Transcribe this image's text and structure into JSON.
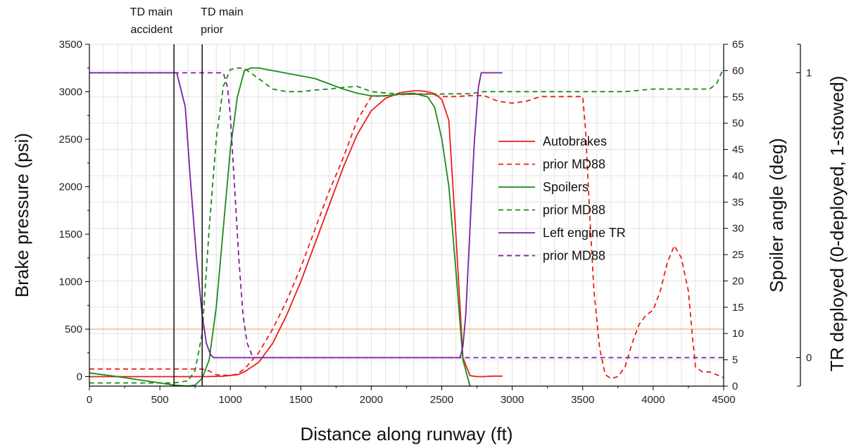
{
  "chart_data": {
    "type": "line",
    "xlabel": "Distance along runway (ft)",
    "ylabel_left": "Brake pressure (psi)",
    "ylabel_right": "Spoiler angle (deg)",
    "ylabel_far_right": "TR deployed (0-deployed, 1-stowed)",
    "xlim": [
      0,
      4500
    ],
    "ylim_left": [
      -100,
      3500
    ],
    "ylim_right": [
      0,
      65
    ],
    "ylim_far_right": [
      1.1,
      -0.1
    ],
    "x_ticks": [
      0,
      500,
      1000,
      1500,
      2000,
      2500,
      3000,
      3500,
      4000,
      4500
    ],
    "x_tick_labels": [
      "0",
      "500",
      "1000",
      "1500",
      "2000",
      "2500",
      "3000",
      "3500",
      "4000",
      "4500"
    ],
    "y_left_ticks": [
      0,
      500,
      1000,
      1500,
      2000,
      2500,
      3000,
      3500
    ],
    "y_left_tick_labels": [
      "0",
      "500",
      "1000",
      "1500",
      "2000",
      "2500",
      "3000",
      "3500"
    ],
    "y_right_ticks": [
      0,
      5,
      10,
      15,
      20,
      25,
      30,
      35,
      40,
      45,
      50,
      55,
      60,
      65
    ],
    "y_right_tick_labels": [
      "0",
      "5",
      "10",
      "15",
      "20",
      "25",
      "30",
      "35",
      "40",
      "45",
      "50",
      "55",
      "60",
      "65"
    ],
    "y_far_right_ticks": [
      0,
      1
    ],
    "y_far_right_tick_labels": [
      "0",
      "1"
    ],
    "grid": true,
    "legend_position": "center-right",
    "annotations": [
      {
        "text_lines": [
          "TD main",
          "accident"
        ],
        "x": 600
      },
      {
        "text_lines": [
          "TD main",
          "prior"
        ],
        "x": 800
      }
    ],
    "reference_line": {
      "axis": "left",
      "y": 500,
      "color": "#e8b36a"
    },
    "series": [
      {
        "name": "Autobrakes",
        "axis": "left",
        "color": "#ee1c1c",
        "dash": "solid",
        "x": [
          0,
          700,
          850,
          950,
          1050,
          1100,
          1200,
          1300,
          1400,
          1500,
          1600,
          1700,
          1800,
          1900,
          2000,
          2100,
          2200,
          2300,
          2350,
          2400,
          2450,
          2500,
          2550,
          2600,
          2650,
          2700,
          2750,
          2800,
          2850,
          2930
        ],
        "y": [
          0,
          0,
          0,
          5,
          20,
          50,
          150,
          350,
          650,
          1000,
          1400,
          1800,
          2200,
          2550,
          2800,
          2930,
          2990,
          3010,
          3010,
          3000,
          2980,
          2920,
          2700,
          1500,
          200,
          10,
          0,
          0,
          5,
          5
        ]
      },
      {
        "name": "prior MD88",
        "axis": "left",
        "color": "#ee1c1c",
        "dash": "dashed",
        "x": [
          0,
          800,
          850,
          900,
          1000,
          1050,
          1100,
          1200,
          1300,
          1400,
          1500,
          1600,
          1700,
          1800,
          1900,
          2000,
          2200,
          2400,
          2500,
          2600,
          2700,
          2800,
          2900,
          3000,
          3100,
          3200,
          3300,
          3400,
          3500,
          3520,
          3550,
          3580,
          3620,
          3660,
          3700,
          3750,
          3800,
          3850,
          3900,
          3950,
          4000,
          4050,
          4100,
          4150,
          4200,
          4250,
          4280,
          4300,
          4350,
          4400,
          4450,
          4500
        ],
        "y": [
          80,
          80,
          60,
          20,
          10,
          30,
          80,
          250,
          500,
          800,
          1150,
          1550,
          1950,
          2300,
          2700,
          2950,
          2970,
          2980,
          2950,
          2950,
          2960,
          2960,
          2900,
          2880,
          2900,
          2950,
          2950,
          2950,
          2950,
          2600,
          1700,
          900,
          300,
          20,
          -20,
          0,
          100,
          350,
          550,
          650,
          700,
          900,
          1200,
          1380,
          1250,
          900,
          400,
          100,
          50,
          50,
          20,
          -10
        ]
      },
      {
        "name": "Spoilers",
        "axis": "right",
        "color": "#1b8a1b",
        "dash": "solid",
        "x": [
          0,
          200,
          400,
          600,
          700,
          750,
          800,
          850,
          900,
          950,
          1000,
          1050,
          1100,
          1150,
          1200,
          1300,
          1400,
          1500,
          1600,
          1700,
          1800,
          1900,
          2000,
          2100,
          2200,
          2300,
          2400,
          2450,
          2500,
          2550,
          2600,
          2650,
          2700
        ],
        "y": [
          2.5,
          1.8,
          1.0,
          0.2,
          0,
          0.2,
          1.5,
          5,
          15,
          30,
          45,
          55,
          60,
          60.5,
          60.5,
          60,
          59.5,
          59,
          58.5,
          57.5,
          56.5,
          55.7,
          55.2,
          55.2,
          55.5,
          55.7,
          55.0,
          53.0,
          47,
          38,
          22,
          5,
          0
        ]
      },
      {
        "name": "prior MD88",
        "axis": "right",
        "color": "#1b8a1b",
        "dash": "dashed",
        "x": [
          0,
          600,
          700,
          750,
          800,
          850,
          900,
          950,
          1000,
          1050,
          1100,
          1200,
          1300,
          1400,
          1500,
          1600,
          1700,
          1800,
          1900,
          2000,
          2200,
          2400,
          2600,
          2700,
          2800,
          2900,
          3000,
          3200,
          3400,
          3600,
          3800,
          4000,
          4200,
          4400,
          4450,
          4500
        ],
        "y": [
          0.6,
          0.6,
          1.0,
          3,
          10,
          30,
          47,
          57,
          60.2,
          60.5,
          60.4,
          58.5,
          56.5,
          56.0,
          56.0,
          56.3,
          56.5,
          56.8,
          57,
          56,
          55.5,
          55.5,
          55.6,
          55.6,
          56.0,
          56.0,
          56.0,
          56.0,
          56.0,
          56.0,
          56.0,
          56.5,
          56.5,
          56.5,
          57.5,
          60.5
        ]
      },
      {
        "name": "Left engine TR",
        "axis": "far_right",
        "color": "#7a1fa0",
        "dash": "solid",
        "x": [
          0,
          620,
          680,
          720,
          760,
          800,
          830,
          860,
          880,
          2600,
          2630,
          2650,
          2670,
          2700,
          2730,
          2760,
          2780,
          2930
        ],
        "y": [
          1,
          1,
          0.88,
          0.6,
          0.35,
          0.15,
          0.05,
          0.01,
          0,
          0,
          0,
          0.04,
          0.15,
          0.45,
          0.75,
          0.95,
          1,
          1
        ]
      },
      {
        "name": "prior MD88",
        "axis": "far_right",
        "color": "#7a1fa0",
        "dash": "dashed",
        "x": [
          0,
          950,
          980,
          1000,
          1030,
          1060,
          1090,
          1120,
          1160,
          1200,
          4500
        ],
        "y": [
          1,
          1,
          0.95,
          0.85,
          0.6,
          0.35,
          0.15,
          0.05,
          0,
          0,
          0
        ]
      }
    ]
  }
}
